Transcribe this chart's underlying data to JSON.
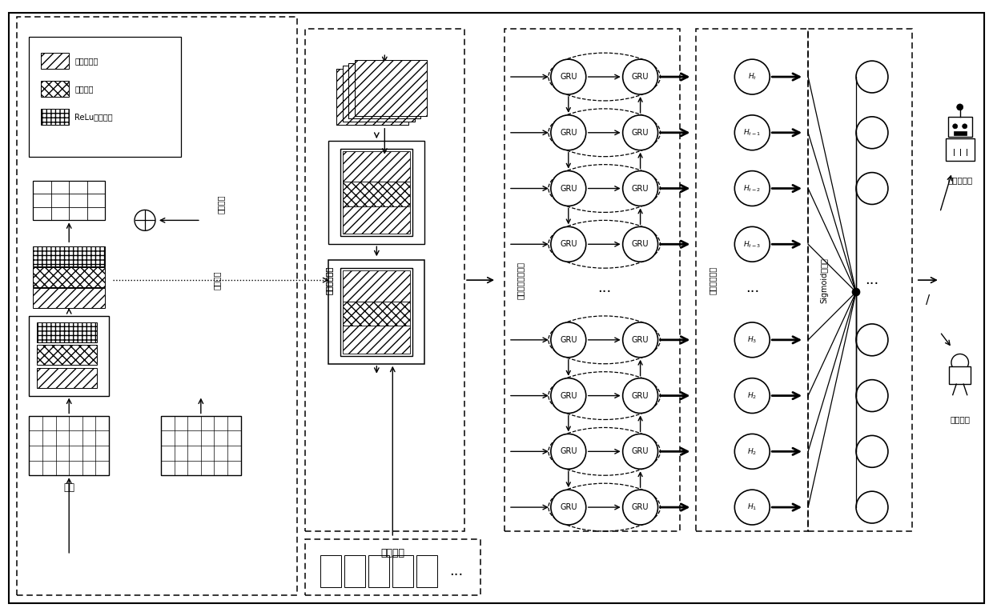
{
  "bg_color": "#ffffff",
  "legend_items": [
    {
      "label": "一维卷积层",
      "hatch": "///"
    },
    {
      "label": "批标准化",
      "hatch": "xxx"
    },
    {
      "label": "ReLu激活函数",
      "hatch": "+++"
    }
  ],
  "labels": {
    "input": "输入",
    "shortcut": "捷径连接",
    "feature_vector": "特征向量",
    "residual_net": "残差神经网络",
    "bigru": "双向门控循环单元",
    "attention": "注意力机制层",
    "sigmoid": "Sigmoid分类层",
    "robot": "社交机器人",
    "normal": "正常用户"
  }
}
